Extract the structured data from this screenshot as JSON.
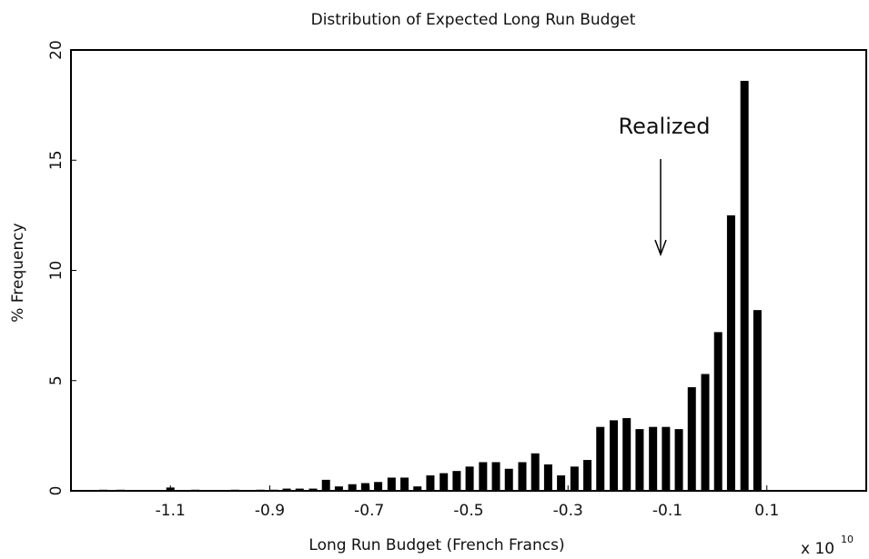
{
  "chart_data": {
    "type": "bar",
    "title": "Distribution of Expected Long Run Budget",
    "xlabel": "Long Run Budget (French Francs)",
    "ylabel": "% Frequency",
    "x_scale_label": {
      "base": "x 10",
      "exponent": "10"
    },
    "annotation": "Realized",
    "color": "#000000",
    "x": [
      -1.235,
      -1.2,
      -1.1,
      -1.05,
      -0.97,
      -0.919,
      -0.892,
      -0.866,
      -0.84,
      -0.813,
      -0.787,
      -0.761,
      -0.734,
      -0.708,
      -0.682,
      -0.655,
      -0.629,
      -0.603,
      -0.577,
      -0.55,
      -0.524,
      -0.498,
      -0.471,
      -0.445,
      -0.419,
      -0.392,
      -0.366,
      -0.34,
      -0.314,
      -0.287,
      -0.261,
      -0.235,
      -0.208,
      -0.182,
      -0.156,
      -0.129,
      -0.103,
      -0.077,
      -0.051,
      -0.024,
      0.002,
      0.028,
      0.055,
      0.081
    ],
    "values": [
      0.05,
      0.05,
      0.15,
      0.05,
      0.05,
      0.05,
      0.05,
      0.1,
      0.1,
      0.1,
      0.5,
      0.2,
      0.3,
      0.35,
      0.4,
      0.6,
      0.6,
      0.2,
      0.7,
      0.8,
      0.9,
      1.1,
      1.3,
      1.3,
      1.0,
      1.3,
      1.7,
      1.2,
      0.7,
      1.1,
      1.4,
      2.9,
      3.2,
      3.3,
      2.8,
      2.9,
      2.9,
      2.8,
      4.7,
      5.3,
      7.2,
      12.5,
      18.6,
      8.2
    ],
    "xlim": [
      -1.3,
      0.3
    ],
    "xticks": [
      -1.1,
      -0.9,
      -0.7,
      -0.5,
      -0.3,
      -0.1,
      0.1
    ],
    "ylim": [
      0,
      20
    ],
    "yticks": [
      0,
      5,
      10,
      15,
      20
    ]
  }
}
